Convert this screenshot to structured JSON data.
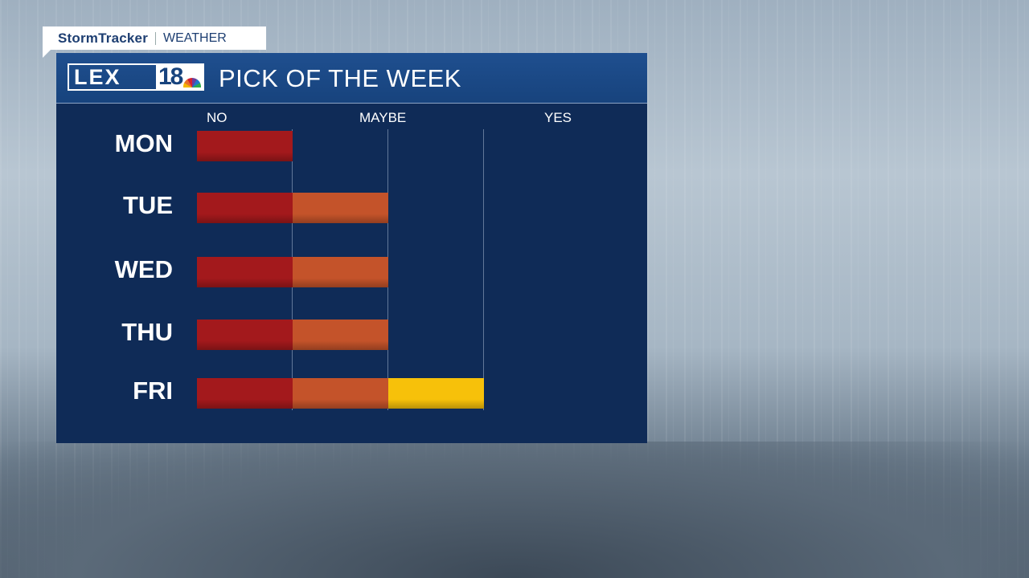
{
  "branding": {
    "storm_tracker": "StormTracker",
    "weather": "WEATHER",
    "logo_text": "LEX18"
  },
  "title": "PICK OF THE WEEK",
  "chart_data": {
    "type": "bar",
    "orientation": "horizontal",
    "stacked_segments": true,
    "categories": [
      "MON",
      "TUE",
      "WED",
      "THU",
      "FRI"
    ],
    "values": [
      1,
      2,
      2,
      2,
      3
    ],
    "scale_labels": [
      "NO",
      "MAYBE",
      "YES"
    ],
    "xlim": [
      0,
      4
    ],
    "segment_colors": [
      "#a3191c",
      "#c4532a",
      "#f7c10a"
    ],
    "grid": true
  }
}
